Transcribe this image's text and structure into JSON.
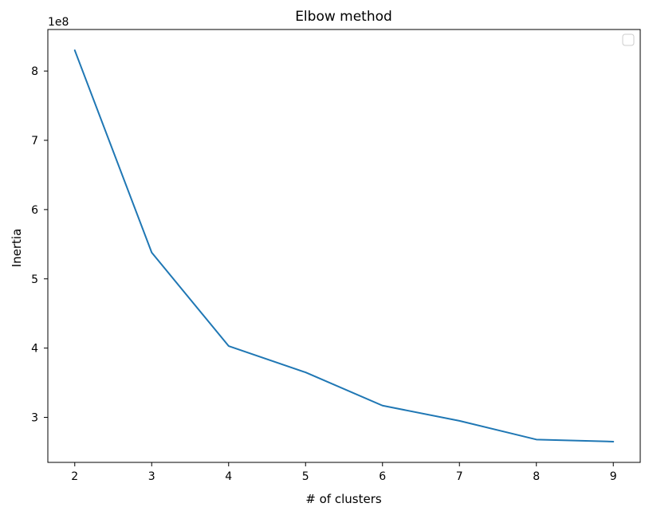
{
  "chart_data": {
    "type": "line",
    "title": "Elbow method",
    "xlabel": "# of clusters",
    "ylabel": "Inertia",
    "y_offset_label": "1e8",
    "x": [
      2,
      3,
      4,
      5,
      6,
      7,
      8,
      9
    ],
    "series": [
      {
        "values": [
          8.3,
          5.38,
          4.03,
          3.65,
          3.17,
          2.95,
          2.68,
          2.65
        ],
        "color": "#1f77b4"
      }
    ],
    "x_ticks": [
      2,
      3,
      4,
      5,
      6,
      7,
      8,
      9
    ],
    "y_ticks": [
      3,
      4,
      5,
      6,
      7,
      8
    ],
    "xlim": [
      1.65,
      9.35
    ],
    "ylim": [
      2.35,
      8.6
    ],
    "grid": false,
    "legend": {
      "visible": true,
      "placement": "top-right",
      "entries": []
    }
  }
}
